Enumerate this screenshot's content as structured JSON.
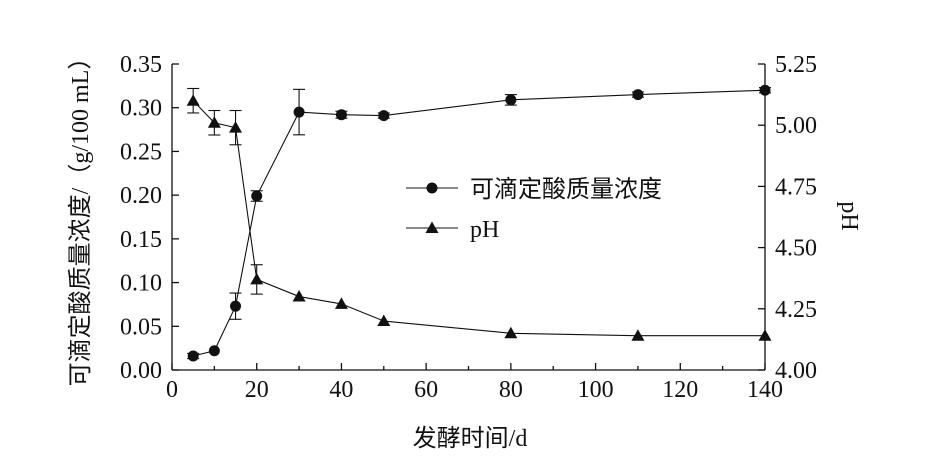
{
  "chart_data": {
    "type": "line",
    "xlabel": "发酵时间/d",
    "ylabel_left": "可滴定酸质量浓度/（g/100 mL）",
    "ylabel_right": "pH",
    "x_ticks": [
      "0",
      "20",
      "40",
      "60",
      "80",
      "100",
      "120",
      "140"
    ],
    "y_left_ticks": [
      "0.00",
      "0.05",
      "0.10",
      "0.15",
      "0.20",
      "0.25",
      "0.30",
      "0.35"
    ],
    "y_right_ticks": [
      "4.00",
      "4.25",
      "4.50",
      "4.75",
      "5.00",
      "5.25"
    ],
    "xlim": [
      0,
      140
    ],
    "ylim_left": [
      0,
      0.35
    ],
    "ylim_right": [
      4.0,
      5.25
    ],
    "legend_position": "center-right",
    "series": [
      {
        "name": "可滴定酸质量浓度",
        "axis": "left",
        "marker": "circle",
        "x": [
          5,
          10,
          15,
          20,
          30,
          40,
          50,
          80,
          110,
          140
        ],
        "y": [
          0.016,
          0.022,
          0.073,
          0.199,
          0.295,
          0.292,
          0.291,
          0.309,
          0.315,
          0.32
        ],
        "err": [
          0.003,
          0.002,
          0.015,
          0.006,
          0.026,
          0.004,
          0.003,
          0.006,
          0.003,
          0.003
        ]
      },
      {
        "name": "pH",
        "axis": "right",
        "marker": "triangle",
        "x": [
          5,
          10,
          15,
          20,
          30,
          40,
          50,
          80,
          110,
          140
        ],
        "y": [
          5.1,
          5.01,
          4.99,
          4.37,
          4.3,
          4.27,
          4.2,
          4.15,
          4.14,
          4.14
        ],
        "err": [
          0.05,
          0.05,
          0.07,
          0.06,
          0.01,
          0.01,
          0.01,
          0.01,
          0.01,
          0.01
        ]
      }
    ]
  }
}
